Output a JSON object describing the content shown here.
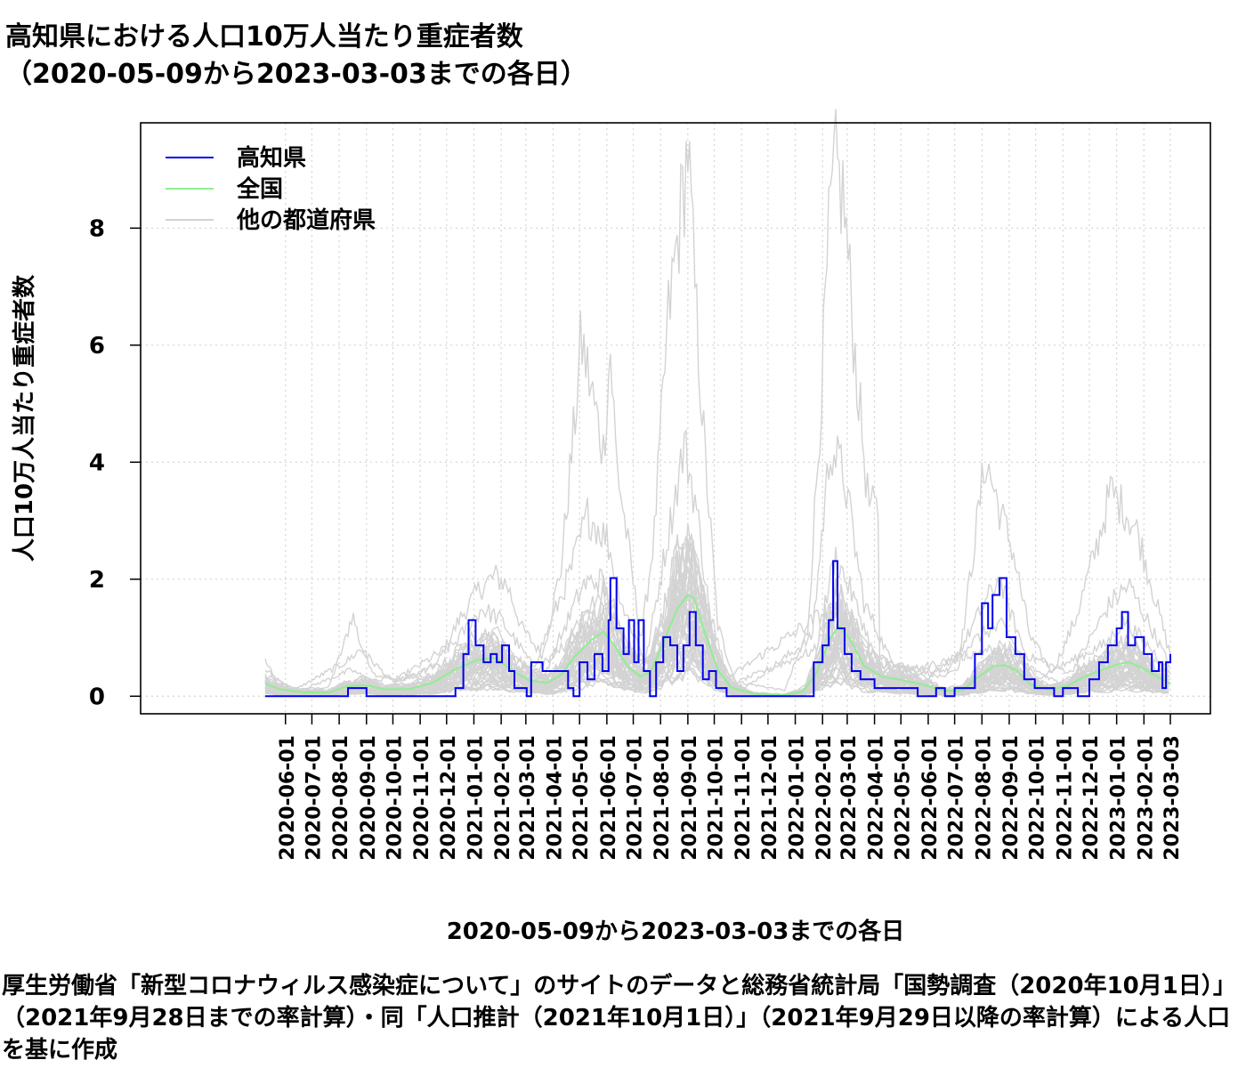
{
  "title_line1": "高知県における人口10万人当たり重症者数",
  "title_line2": "（2020-05-09から2023-03-03までの各日）",
  "xlabel": "2020-05-09から2023-03-03までの各日",
  "ylabel": "人口10万人当たり重症者数",
  "caption": "厚生労働省「新型コロナウィルス感染症について」のサイトのデータと総務省統計局「国勢調査（2020年10月1日）」（2021年9月28日までの率計算）・同「人口推計（2021年10月1日）」（2021年9月29日以降の率計算）による人口を基に作成",
  "chart_data": {
    "type": "line",
    "x_start": "2020-05-09",
    "x_end": "2023-03-03",
    "ylim": [
      -0.3,
      9.8
    ],
    "y_ticks": [
      0,
      2,
      4,
      6,
      8
    ],
    "grid": true,
    "legend_position": "top-left",
    "x_ticks": [
      "2020-06-01",
      "2020-07-01",
      "2020-08-01",
      "2020-09-01",
      "2020-10-01",
      "2020-11-01",
      "2020-12-01",
      "2021-01-01",
      "2021-02-01",
      "2021-03-01",
      "2021-04-01",
      "2021-05-01",
      "2021-06-01",
      "2021-07-01",
      "2021-08-01",
      "2021-09-01",
      "2021-10-01",
      "2021-11-01",
      "2021-12-01",
      "2022-01-01",
      "2022-02-01",
      "2022-03-01",
      "2022-04-01",
      "2022-05-01",
      "2022-06-01",
      "2022-07-01",
      "2022-08-01",
      "2022-09-01",
      "2022-10-01",
      "2022-11-01",
      "2022-12-01",
      "2023-01-01",
      "2023-02-01",
      "2023-03-03"
    ],
    "series": [
      {
        "name": "高知県",
        "color": "#0000ee",
        "points": [
          [
            "2020-05-09",
            0
          ],
          [
            "2020-08-10",
            0
          ],
          [
            "2020-08-11",
            0.14
          ],
          [
            "2020-08-31",
            0.14
          ],
          [
            "2020-09-01",
            0
          ],
          [
            "2020-12-10",
            0
          ],
          [
            "2020-12-11",
            0.14
          ],
          [
            "2020-12-19",
            0.14
          ],
          [
            "2020-12-20",
            0.72
          ],
          [
            "2020-12-26",
            1.3
          ],
          [
            "2021-01-03",
            0.87
          ],
          [
            "2021-01-12",
            0.58
          ],
          [
            "2021-01-20",
            0.72
          ],
          [
            "2021-01-27",
            0.58
          ],
          [
            "2021-02-02",
            0.87
          ],
          [
            "2021-02-10",
            0.43
          ],
          [
            "2021-02-16",
            0.14
          ],
          [
            "2021-03-02",
            0
          ],
          [
            "2021-03-07",
            0.58
          ],
          [
            "2021-03-20",
            0.43
          ],
          [
            "2021-04-08",
            0.43
          ],
          [
            "2021-04-18",
            0.14
          ],
          [
            "2021-04-24",
            0
          ],
          [
            "2021-05-01",
            0.58
          ],
          [
            "2021-05-10",
            0.29
          ],
          [
            "2021-05-18",
            0.72
          ],
          [
            "2021-05-27",
            0.43
          ],
          [
            "2021-06-03",
            1.3
          ],
          [
            "2021-06-05",
            2.02
          ],
          [
            "2021-06-12",
            1.16
          ],
          [
            "2021-06-20",
            0.72
          ],
          [
            "2021-06-26",
            1.3
          ],
          [
            "2021-07-02",
            0.58
          ],
          [
            "2021-07-07",
            1.3
          ],
          [
            "2021-07-13",
            0.43
          ],
          [
            "2021-07-20",
            0
          ],
          [
            "2021-07-27",
            0.58
          ],
          [
            "2021-08-04",
            1.01
          ],
          [
            "2021-08-12",
            0.87
          ],
          [
            "2021-08-20",
            0.43
          ],
          [
            "2021-08-27",
            0.87
          ],
          [
            "2021-09-03",
            1.44
          ],
          [
            "2021-09-10",
            0.87
          ],
          [
            "2021-09-18",
            0.29
          ],
          [
            "2021-09-25",
            0.43
          ],
          [
            "2021-10-03",
            0.14
          ],
          [
            "2021-10-15",
            0
          ],
          [
            "2022-01-18",
            0
          ],
          [
            "2022-01-22",
            0.58
          ],
          [
            "2022-02-01",
            0.87
          ],
          [
            "2022-02-08",
            1.3
          ],
          [
            "2022-02-13",
            2.31
          ],
          [
            "2022-02-18",
            1.16
          ],
          [
            "2022-02-26",
            0.72
          ],
          [
            "2022-03-06",
            0.43
          ],
          [
            "2022-03-16",
            0.29
          ],
          [
            "2022-04-01",
            0.14
          ],
          [
            "2022-05-15",
            0.14
          ],
          [
            "2022-05-20",
            0
          ],
          [
            "2022-06-10",
            0.14
          ],
          [
            "2022-06-20",
            0
          ],
          [
            "2022-07-01",
            0.14
          ],
          [
            "2022-07-18",
            0.14
          ],
          [
            "2022-07-24",
            0.72
          ],
          [
            "2022-08-01",
            1.59
          ],
          [
            "2022-08-08",
            1.16
          ],
          [
            "2022-08-13",
            1.73
          ],
          [
            "2022-08-21",
            2.02
          ],
          [
            "2022-08-29",
            1.01
          ],
          [
            "2022-09-08",
            0.72
          ],
          [
            "2022-09-18",
            0.29
          ],
          [
            "2022-09-30",
            0.14
          ],
          [
            "2022-10-15",
            0.14
          ],
          [
            "2022-10-22",
            0
          ],
          [
            "2022-11-01",
            0.14
          ],
          [
            "2022-11-18",
            0
          ],
          [
            "2022-12-01",
            0.29
          ],
          [
            "2022-12-12",
            0.58
          ],
          [
            "2022-12-22",
            0.87
          ],
          [
            "2023-01-01",
            1.16
          ],
          [
            "2023-01-07",
            1.44
          ],
          [
            "2023-01-14",
            0.87
          ],
          [
            "2023-01-22",
            1.01
          ],
          [
            "2023-02-01",
            0.72
          ],
          [
            "2023-02-10",
            0.43
          ],
          [
            "2023-02-18",
            0.58
          ],
          [
            "2023-02-22",
            0.14
          ],
          [
            "2023-02-26",
            0.58
          ],
          [
            "2023-03-03",
            0.72
          ]
        ]
      },
      {
        "name": "全国",
        "color": "#90ee90",
        "points": [
          [
            "2020-05-09",
            0.22
          ],
          [
            "2020-05-25",
            0.12
          ],
          [
            "2020-06-20",
            0.07
          ],
          [
            "2020-07-20",
            0.06
          ],
          [
            "2020-08-10",
            0.17
          ],
          [
            "2020-08-30",
            0.19
          ],
          [
            "2020-09-20",
            0.12
          ],
          [
            "2020-10-20",
            0.12
          ],
          [
            "2020-11-15",
            0.23
          ],
          [
            "2020-12-10",
            0.45
          ],
          [
            "2021-01-05",
            0.62
          ],
          [
            "2021-01-25",
            0.66
          ],
          [
            "2021-02-15",
            0.42
          ],
          [
            "2021-03-05",
            0.27
          ],
          [
            "2021-03-25",
            0.23
          ],
          [
            "2021-04-10",
            0.36
          ],
          [
            "2021-04-25",
            0.67
          ],
          [
            "2021-05-15",
            0.97
          ],
          [
            "2021-05-28",
            1.1
          ],
          [
            "2021-06-10",
            0.87
          ],
          [
            "2021-06-25",
            0.5
          ],
          [
            "2021-07-10",
            0.33
          ],
          [
            "2021-07-22",
            0.45
          ],
          [
            "2021-08-05",
            0.95
          ],
          [
            "2021-08-20",
            1.5
          ],
          [
            "2021-09-01",
            1.73
          ],
          [
            "2021-09-08",
            1.68
          ],
          [
            "2021-09-20",
            1.1
          ],
          [
            "2021-10-05",
            0.45
          ],
          [
            "2021-10-20",
            0.15
          ],
          [
            "2021-11-15",
            0.04
          ],
          [
            "2021-12-20",
            0.02
          ],
          [
            "2022-01-10",
            0.08
          ],
          [
            "2022-01-25",
            0.4
          ],
          [
            "2022-02-10",
            1.0
          ],
          [
            "2022-02-20",
            1.2
          ],
          [
            "2022-03-05",
            0.95
          ],
          [
            "2022-03-20",
            0.52
          ],
          [
            "2022-04-10",
            0.33
          ],
          [
            "2022-05-01",
            0.28
          ],
          [
            "2022-05-25",
            0.2
          ],
          [
            "2022-06-20",
            0.09
          ],
          [
            "2022-07-10",
            0.1
          ],
          [
            "2022-07-25",
            0.3
          ],
          [
            "2022-08-15",
            0.52
          ],
          [
            "2022-08-28",
            0.53
          ],
          [
            "2022-09-10",
            0.43
          ],
          [
            "2022-09-25",
            0.2
          ],
          [
            "2022-10-15",
            0.11
          ],
          [
            "2022-11-05",
            0.17
          ],
          [
            "2022-11-25",
            0.33
          ],
          [
            "2022-12-15",
            0.45
          ],
          [
            "2023-01-05",
            0.56
          ],
          [
            "2023-01-15",
            0.58
          ],
          [
            "2023-02-01",
            0.47
          ],
          [
            "2023-02-20",
            0.3
          ],
          [
            "2023-03-03",
            0.22
          ]
        ]
      },
      {
        "name": "他の都道府県",
        "color": "#d3d3d3"
      }
    ],
    "other_prefecture_peaks": [
      [
        [
          "2020-05-09",
          0.62
        ],
        [
          "2020-05-20",
          0.28
        ],
        [
          "2020-06-15",
          0.12
        ],
        [
          "2020-07-20",
          0.15
        ],
        [
          "2020-08-08",
          0.95
        ],
        [
          "2020-08-16",
          1.42
        ],
        [
          "2020-08-25",
          0.9
        ],
        [
          "2020-09-10",
          0.38
        ],
        [
          "2020-10-10",
          0.25
        ],
        [
          "2020-11-20",
          0.55
        ],
        [
          "2020-12-15",
          1.3
        ],
        [
          "2021-01-08",
          1.85
        ],
        [
          "2021-01-25",
          2.05
        ],
        [
          "2021-02-08",
          1.9
        ],
        [
          "2021-02-25",
          1.15
        ],
        [
          "2021-03-20",
          0.7
        ],
        [
          "2021-04-10",
          2.2
        ],
        [
          "2021-04-25",
          4.6
        ],
        [
          "2021-05-03",
          6.1
        ],
        [
          "2021-05-12",
          5.4
        ],
        [
          "2021-05-28",
          4.2
        ],
        [
          "2021-06-05",
          5.9
        ],
        [
          "2021-06-12",
          4.0
        ],
        [
          "2021-06-25",
          2.6
        ],
        [
          "2021-07-10",
          0.95
        ],
        [
          "2021-07-25",
          2.8
        ],
        [
          "2021-08-10",
          6.5
        ],
        [
          "2021-08-25",
          8.4
        ],
        [
          "2021-09-01",
          9.45
        ],
        [
          "2021-09-08",
          7.2
        ],
        [
          "2021-09-20",
          4.2
        ],
        [
          "2021-10-05",
          1.2
        ],
        [
          "2021-10-25",
          0.25
        ],
        [
          "2021-12-20",
          0.1
        ],
        [
          "2022-01-15",
          1.1
        ],
        [
          "2022-01-28",
          4.4
        ],
        [
          "2022-02-08",
          7.8
        ],
        [
          "2022-02-15",
          9.05
        ],
        [
          "2022-02-25",
          8.5
        ],
        [
          "2022-03-10",
          5.8
        ],
        [
          "2022-03-25",
          3.3
        ],
        [
          "2022-04-05",
          3.15
        ],
        [
          "2022-04-06",
          0.55
        ],
        [
          "2022-05-01",
          0.55
        ],
        [
          "2022-06-01",
          0.45
        ],
        [
          "2022-07-05",
          0.45
        ],
        [
          "2022-07-25",
          2.8
        ],
        [
          "2022-08-05",
          4.05
        ],
        [
          "2022-08-20",
          3.25
        ],
        [
          "2022-09-05",
          2.5
        ],
        [
          "2022-09-25",
          1.0
        ],
        [
          "2022-10-20",
          0.4
        ],
        [
          "2022-11-15",
          1.3
        ],
        [
          "2022-12-10",
          2.6
        ],
        [
          "2022-12-25",
          3.5
        ],
        [
          "2023-01-10",
          3.2
        ],
        [
          "2023-01-25",
          2.8
        ],
        [
          "2023-02-15",
          1.6
        ],
        [
          "2023-03-03",
          0.7
        ]
      ],
      [
        [
          "2020-05-09",
          0.45
        ],
        [
          "2020-06-10",
          0.1
        ],
        [
          "2020-08-10",
          0.6
        ],
        [
          "2020-08-25",
          0.8
        ],
        [
          "2020-10-01",
          0.25
        ],
        [
          "2020-12-10",
          0.9
        ],
        [
          "2021-01-10",
          1.5
        ],
        [
          "2021-02-01",
          1.3
        ],
        [
          "2021-03-10",
          0.5
        ],
        [
          "2021-04-20",
          2.1
        ],
        [
          "2021-05-10",
          3.1
        ],
        [
          "2021-06-01",
          2.7
        ],
        [
          "2021-06-20",
          1.5
        ],
        [
          "2021-07-15",
          0.6
        ],
        [
          "2021-08-10",
          2.8
        ],
        [
          "2021-08-28",
          4.3
        ],
        [
          "2021-09-10",
          3.3
        ],
        [
          "2021-10-01",
          0.8
        ],
        [
          "2021-11-01",
          0.1
        ],
        [
          "2022-01-20",
          1.0
        ],
        [
          "2022-02-10",
          4.3
        ],
        [
          "2022-02-25",
          3.8
        ],
        [
          "2022-03-20",
          1.6
        ],
        [
          "2022-04-20",
          0.6
        ],
        [
          "2022-06-20",
          0.3
        ],
        [
          "2022-08-01",
          1.5
        ],
        [
          "2022-08-20",
          2.0
        ],
        [
          "2022-09-20",
          0.7
        ],
        [
          "2022-11-10",
          0.4
        ],
        [
          "2022-12-25",
          1.6
        ],
        [
          "2023-01-15",
          1.9
        ],
        [
          "2023-02-15",
          1.0
        ],
        [
          "2023-03-03",
          0.5
        ]
      ],
      [
        [
          "2020-05-09",
          0.3
        ],
        [
          "2020-06-10",
          0.05
        ],
        [
          "2020-08-15",
          0.45
        ],
        [
          "2020-09-20",
          0.15
        ],
        [
          "2020-12-20",
          0.7
        ],
        [
          "2021-01-15",
          1.1
        ],
        [
          "2021-02-15",
          0.7
        ],
        [
          "2021-03-20",
          0.3
        ],
        [
          "2021-05-05",
          1.9
        ],
        [
          "2021-05-25",
          2.0
        ],
        [
          "2021-06-20",
          1.0
        ],
        [
          "2021-07-20",
          0.5
        ],
        [
          "2021-08-20",
          2.5
        ],
        [
          "2021-09-05",
          2.8
        ],
        [
          "2021-09-25",
          1.4
        ],
        [
          "2021-10-20",
          0.2
        ],
        [
          "2022-01-25",
          0.8
        ],
        [
          "2022-02-15",
          2.4
        ],
        [
          "2022-03-05",
          1.8
        ],
        [
          "2022-04-01",
          0.7
        ],
        [
          "2022-06-01",
          0.3
        ],
        [
          "2022-08-05",
          1.1
        ],
        [
          "2022-08-25",
          1.2
        ],
        [
          "2022-10-01",
          0.3
        ],
        [
          "2022-12-20",
          0.9
        ],
        [
          "2023-01-10",
          1.3
        ],
        [
          "2023-02-10",
          0.8
        ],
        [
          "2023-03-03",
          0.4
        ]
      ],
      [
        [
          "2020-05-09",
          0.15
        ],
        [
          "2020-07-01",
          0.03
        ],
        [
          "2020-08-20",
          0.25
        ],
        [
          "2020-12-15",
          0.4
        ],
        [
          "2021-01-15",
          0.7
        ],
        [
          "2021-03-01",
          0.3
        ],
        [
          "2021-05-10",
          1.2
        ],
        [
          "2021-06-01",
          1.3
        ],
        [
          "2021-07-10",
          0.4
        ],
        [
          "2021-08-25",
          1.8
        ],
        [
          "2021-09-10",
          1.6
        ],
        [
          "2021-10-15",
          0.3
        ],
        [
          "2022-02-10",
          1.5
        ],
        [
          "2022-03-10",
          1.0
        ],
        [
          "2022-05-01",
          0.4
        ],
        [
          "2022-08-10",
          0.8
        ],
        [
          "2022-09-10",
          0.6
        ],
        [
          "2022-11-01",
          0.2
        ],
        [
          "2023-01-10",
          0.9
        ],
        [
          "2023-02-20",
          0.5
        ],
        [
          "2023-03-03",
          0.3
        ]
      ]
    ]
  }
}
